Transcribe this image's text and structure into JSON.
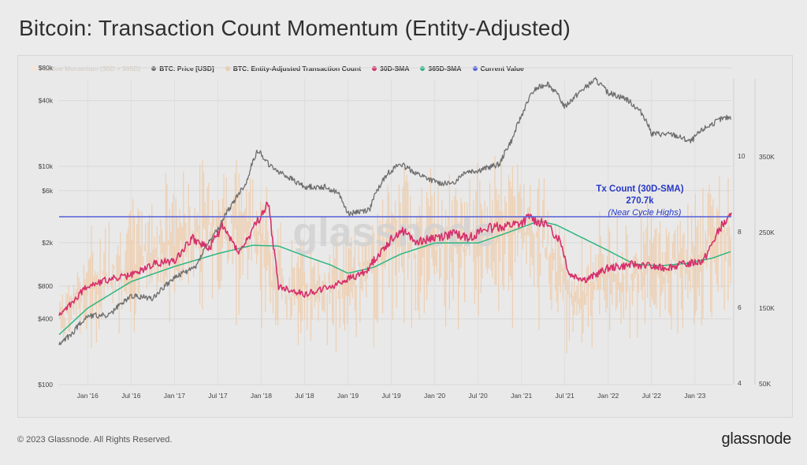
{
  "title": "Bitcoin: Transaction Count Momentum (Entity-Adjusted)",
  "footer": "© 2023 Glassnode. All Rights Reserved.",
  "brand": "glassnode",
  "watermark": "glassnode",
  "legend": [
    {
      "label": "Positive Momentum (30D > 365D)",
      "color": "#f5e6d6",
      "marker": "square",
      "faded": true
    },
    {
      "label": "BTC: Price [USD]",
      "color": "#6e6e6e",
      "marker": "dot"
    },
    {
      "label": "BTC: Entity-Adjusted Transaction Count",
      "color": "#f0cba7",
      "marker": "dot"
    },
    {
      "label": "30D-SMA",
      "color": "#d6306c",
      "marker": "dot"
    },
    {
      "label": "365D-SMA",
      "color": "#2fb682",
      "marker": "dot"
    },
    {
      "label": "Current Value",
      "color": "#5560d8",
      "marker": "dot"
    }
  ],
  "annotation": {
    "line1": "Tx Count (30D-SMA)",
    "line2": "270.7k",
    "line3": "(Near Cycle Highs)",
    "color": "#2838c7"
  },
  "colors": {
    "price": "#6e6e6e",
    "txcount": "#f0cba7",
    "sma30": "#d6306c",
    "sma365": "#2fb682",
    "current": "#5560d8"
  },
  "chart_data": {
    "type": "line",
    "title": "Bitcoin: Transaction Count Momentum (Entity-Adjusted)",
    "x_ticks": [
      "Jan '16",
      "Jul '16",
      "Jan '17",
      "Jul '17",
      "Jan '18",
      "Jul '18",
      "Jan '19",
      "Jul '19",
      "Jan '20",
      "Jul '20",
      "Jan '21",
      "Jul '21",
      "Jan '22",
      "Jul '22",
      "Jan '23"
    ],
    "x_range": [
      2015.67,
      2023.42
    ],
    "price_axis": {
      "scale": "log",
      "ticks": [
        "$80k",
        "$40k",
        "$10k",
        "$6k",
        "$2k",
        "$800",
        "$400",
        "$100"
      ],
      "tick_values": [
        80000,
        40000,
        10000,
        6000,
        2000,
        800,
        400,
        100
      ],
      "range": [
        100,
        80000
      ]
    },
    "count_axis": {
      "ticks": [
        "350K",
        "250K",
        "150K",
        "50K"
      ],
      "tick_values": [
        350000,
        250000,
        150000,
        50000
      ],
      "range": [
        50000,
        380000
      ]
    },
    "osc_axis": {
      "ticks": [
        "10",
        "8",
        "6",
        "4"
      ],
      "tick_values": [
        10,
        8,
        6,
        4
      ]
    },
    "current_value": 270700,
    "series": [
      {
        "name": "BTC: Price [USD]",
        "x": [
          2015.67,
          2015.83,
          2016.0,
          2016.25,
          2016.5,
          2016.75,
          2017.0,
          2017.25,
          2017.5,
          2017.67,
          2017.83,
          2017.96,
          2018.1,
          2018.3,
          2018.5,
          2018.75,
          2018.9,
          2019.0,
          2019.25,
          2019.45,
          2019.6,
          2019.8,
          2020.0,
          2020.2,
          2020.35,
          2020.5,
          2020.75,
          2020.9,
          2021.0,
          2021.15,
          2021.3,
          2021.5,
          2021.65,
          2021.85,
          2022.0,
          2022.2,
          2022.4,
          2022.5,
          2022.75,
          2022.95,
          2023.1,
          2023.3,
          2023.42
        ],
        "values": [
          230,
          300,
          430,
          430,
          650,
          620,
          950,
          1200,
          2600,
          4500,
          7000,
          14000,
          10000,
          8000,
          6500,
          6500,
          5500,
          3700,
          4000,
          8500,
          10500,
          8500,
          7200,
          6800,
          9000,
          9200,
          10500,
          18000,
          29000,
          50000,
          58000,
          35000,
          46000,
          62000,
          47000,
          42000,
          30000,
          20000,
          19500,
          16800,
          22000,
          27000,
          28500
        ]
      },
      {
        "name": "BTC: Entity-Adjusted Transaction Count",
        "x": [
          2015.67,
          2016.0,
          2016.5,
          2017.0,
          2017.5,
          2017.9,
          2018.3,
          2018.7,
          2019.2,
          2019.6,
          2020.0,
          2020.5,
          2020.8,
          2021.1,
          2021.4,
          2021.6,
          2021.9,
          2022.3,
          2022.7,
          2023.0,
          2023.42
        ],
        "values": [
          140000,
          185000,
          220000,
          245000,
          265000,
          265000,
          175000,
          185000,
          210000,
          255000,
          240000,
          250000,
          265000,
          270000,
          215000,
          165000,
          200000,
          205000,
          215000,
          225000,
          275000
        ]
      },
      {
        "name": "30D-SMA",
        "x": [
          2015.67,
          2015.8,
          2016.0,
          2016.25,
          2016.5,
          2016.75,
          2017.0,
          2017.2,
          2017.4,
          2017.55,
          2017.75,
          2017.93,
          2018.08,
          2018.2,
          2018.5,
          2018.8,
          2019.0,
          2019.2,
          2019.4,
          2019.6,
          2019.8,
          2020.0,
          2020.25,
          2020.4,
          2020.6,
          2020.8,
          2021.0,
          2021.1,
          2021.3,
          2021.45,
          2021.55,
          2021.75,
          2022.0,
          2022.3,
          2022.6,
          2022.9,
          2023.1,
          2023.3,
          2023.42
        ],
        "values": [
          140000,
          155000,
          180000,
          188000,
          193000,
          208000,
          213000,
          243000,
          228000,
          258000,
          223000,
          258000,
          288000,
          178000,
          168000,
          178000,
          188000,
          198000,
          228000,
          253000,
          238000,
          243000,
          248000,
          243000,
          255000,
          258000,
          262000,
          270000,
          258000,
          240000,
          195000,
          188000,
          203000,
          208000,
          203000,
          208000,
          213000,
          258000,
          270700
        ]
      },
      {
        "name": "365D-SMA",
        "x": [
          2015.67,
          2016.0,
          2016.5,
          2017.0,
          2017.5,
          2017.9,
          2018.2,
          2018.5,
          2018.8,
          2019.0,
          2019.3,
          2019.6,
          2020.0,
          2020.5,
          2020.8,
          2021.2,
          2021.4,
          2021.7,
          2022.0,
          2022.3,
          2022.6,
          2022.9,
          2023.2,
          2023.42
        ],
        "values": [
          115000,
          150000,
          185000,
          205000,
          222000,
          233000,
          232000,
          219000,
          207000,
          196000,
          204000,
          221000,
          236000,
          236000,
          248000,
          265000,
          260000,
          243000,
          226000,
          208000,
          206000,
          209000,
          216000,
          225000
        ]
      },
      {
        "name": "Current Value",
        "values": [
          270700
        ]
      }
    ]
  }
}
